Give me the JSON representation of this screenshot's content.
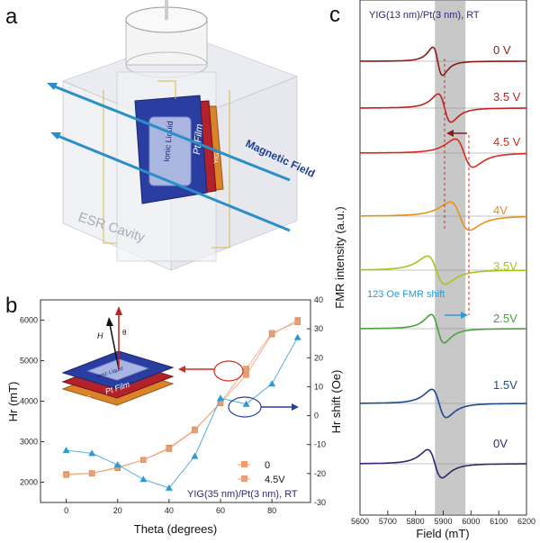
{
  "panel_a": {
    "letter": "a",
    "labels": {
      "magnetic_field": "Magnetic Field",
      "esr_cavity": "ESR Cavity",
      "pt_film": "Pt Film",
      "ionic_liquid": "Ionic Liquid",
      "yig": "YIG",
      "ggg_substrate": "GGG substrate"
    }
  },
  "panel_b": {
    "letter": "b",
    "inset_labels": {
      "h": "H",
      "theta": "θ",
      "pt_film": "Pt Film",
      "ionic_liquid": "Ionic Liquid",
      "yig": "YIG",
      "ggg_substrate": "GGG substrate"
    },
    "sample_label": "YIG(35 nm)/Pt(3 nm), RT",
    "legend": [
      "0",
      "4.5V"
    ],
    "colors": {
      "v0": "#f29a6a",
      "v45": "#e8a07a",
      "shift": "#2b9bd4"
    }
  },
  "panel_c": {
    "letter": "c",
    "sample_label": "YIG(13 nm)/Pt(3 nm), RT",
    "shift_label": "123 Oe FMR shift",
    "shaded_band": [
      5870,
      5980
    ]
  },
  "chart_data": [
    {
      "type": "scatter",
      "title": "",
      "xlabel": "Theta (degrees)",
      "ylabel": "Hr (mT)",
      "y2label": "Hr shift (Oe)",
      "xlim": [
        -10,
        95
      ],
      "ylim": [
        1500,
        6500
      ],
      "y2lim": [
        -30,
        40
      ],
      "xticks": [
        0,
        20,
        40,
        60,
        80
      ],
      "yticks": [
        2000,
        3000,
        4000,
        5000,
        6000
      ],
      "y2ticks": [
        -30,
        -20,
        -10,
        0,
        10,
        20,
        30,
        40
      ],
      "series": [
        {
          "name": "0",
          "axis": "left",
          "marker": "square",
          "color": "#f29a6a",
          "x": [
            0,
            10,
            20,
            30,
            40,
            50,
            60,
            70,
            80,
            90
          ],
          "y": [
            2200,
            2220,
            2350,
            2550,
            2850,
            3300,
            3950,
            4650,
            5650,
            6000
          ]
        },
        {
          "name": "4.5V",
          "axis": "left",
          "marker": "square",
          "color": "#e8a07a",
          "x": [
            0,
            10,
            20,
            30,
            40,
            50,
            60,
            70,
            80,
            90
          ],
          "y": [
            2180,
            2220,
            2370,
            2550,
            2820,
            3280,
            3970,
            4800,
            5680,
            5950
          ]
        },
        {
          "name": "",
          "axis": "right",
          "marker": "triangle",
          "color": "#2b9bd4",
          "x": [
            0,
            10,
            20,
            30,
            40,
            50,
            60,
            70,
            80,
            90
          ],
          "y": [
            -12,
            -13,
            -17,
            -22,
            -25,
            -14,
            6,
            4,
            11,
            27
          ]
        }
      ]
    },
    {
      "type": "line",
      "title": "",
      "xlabel": "Field (mT)",
      "ylabel": "FMR intensity (a.u.)",
      "xlim": [
        5600,
        6200
      ],
      "xticks": [
        5600,
        5700,
        5800,
        5900,
        6000,
        6100,
        6200
      ],
      "series": [
        {
          "name": "0 V",
          "color": "#8b1a1a",
          "center": 5880,
          "half_width": 30,
          "amplitude": 1.0
        },
        {
          "name": "3.5 V",
          "color": "#c42020",
          "center": 5905,
          "half_width": 40,
          "amplitude": 1.0
        },
        {
          "name": "4.5 V",
          "color": "#d62a1f",
          "center": 5975,
          "half_width": 55,
          "amplitude": 1.0
        },
        {
          "name": "4V",
          "color": "#e8901a",
          "center": 5960,
          "half_width": 60,
          "amplitude": 1.0
        },
        {
          "name": "3.5V",
          "color": "#a7c61a",
          "center": 5875,
          "half_width": 55,
          "amplitude": 1.0
        },
        {
          "name": "2.5V",
          "color": "#4aa33a",
          "center": 5880,
          "half_width": 40,
          "amplitude": 1.0
        },
        {
          "name": "1.5V",
          "color": "#1f4a8f",
          "center": 5885,
          "half_width": 45,
          "amplitude": 1.0
        },
        {
          "name": "0V",
          "color": "#3a2270",
          "center": 5870,
          "half_width": 45,
          "amplitude": 1.0
        }
      ]
    }
  ]
}
